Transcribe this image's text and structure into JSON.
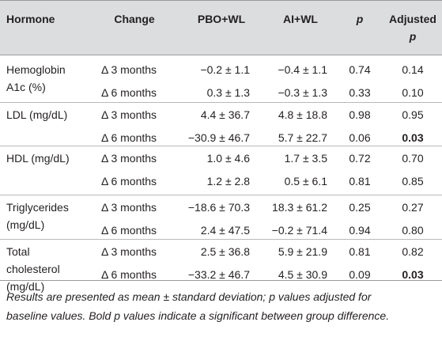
{
  "headers": {
    "hormone": "Hormone",
    "change": "Change",
    "pbo": "PBO+WL",
    "ai": "AI+WL",
    "p": "p",
    "adjusted_line1": "Adjusted",
    "adjusted_line2": "p"
  },
  "groups": [
    {
      "name_lines": [
        "Hemoglobin",
        "A1c (%)"
      ],
      "rows": [
        {
          "change": "Δ 3 months",
          "pbo": "−0.2 ± 1.1",
          "ai": "−0.4 ± 1.1",
          "p": "0.74",
          "adj": "0.14",
          "bold": false
        },
        {
          "change": "Δ 6 months",
          "pbo": "0.3 ± 1.3",
          "ai": "−0.3 ± 1.3",
          "p": "0.33",
          "adj": "0.10",
          "bold": false
        }
      ]
    },
    {
      "name_lines": [
        "LDL (mg/dL)"
      ],
      "rows": [
        {
          "change": "Δ 3 months",
          "pbo": "4.4 ± 36.7",
          "ai": "4.8 ± 18.8",
          "p": "0.98",
          "adj": "0.95",
          "bold": false
        },
        {
          "change": "Δ 6 months",
          "pbo": "−30.9 ± 46.7",
          "ai": "5.7 ± 22.7",
          "p": "0.06",
          "adj": "0.03",
          "bold": true
        }
      ]
    },
    {
      "name_lines": [
        "HDL (mg/dL)"
      ],
      "rows": [
        {
          "change": "Δ 3 months",
          "pbo": "1.0 ± 4.6",
          "ai": "1.7 ± 3.5",
          "p": "0.72",
          "adj": "0.70",
          "bold": false
        },
        {
          "change": "Δ 6 months",
          "pbo": "1.2 ± 2.8",
          "ai": "0.5 ± 6.1",
          "p": "0.81",
          "adj": "0.85",
          "bold": false
        }
      ]
    },
    {
      "name_lines": [
        "Triglycerides",
        "(mg/dL)"
      ],
      "rows": [
        {
          "change": "Δ 3 months",
          "pbo": "−18.6 ± 70.3",
          "ai": "18.3 ± 61.2",
          "p": "0.25",
          "adj": "0.27",
          "bold": false
        },
        {
          "change": "Δ 6 months",
          "pbo": "2.4 ± 47.5",
          "ai": "−0.2 ± 71.4",
          "p": "0.94",
          "adj": "0.80",
          "bold": false
        }
      ]
    },
    {
      "name_lines": [
        "Total",
        "cholesterol",
        "(mg/dL)"
      ],
      "rows": [
        {
          "change": "Δ 3 months",
          "pbo": "2.5 ± 36.8",
          "ai": "5.9 ± 21.9",
          "p": "0.81",
          "adj": "0.82",
          "bold": false
        },
        {
          "change": "Δ 6 months",
          "pbo": "−33.2 ± 46.7",
          "ai": "4.5 ± 30.9",
          "p": "0.09",
          "adj": "0.03",
          "bold": true
        }
      ]
    }
  ],
  "note": {
    "line1": "Results are presented as mean ± standard deviation; p values adjusted for",
    "line2": "baseline values. Bold p values indicate a significant between group difference."
  }
}
